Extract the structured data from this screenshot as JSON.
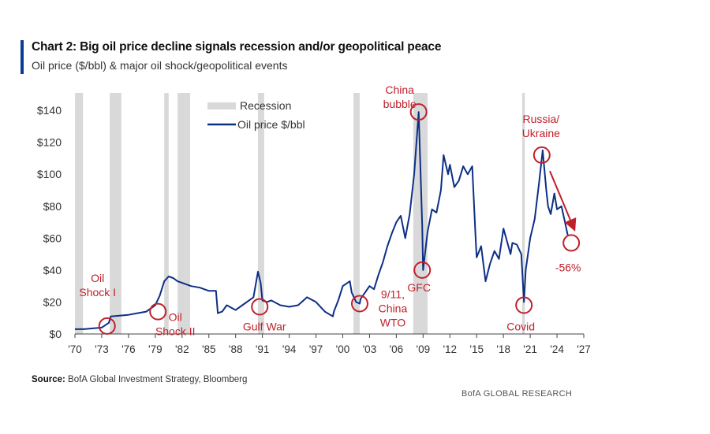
{
  "header": {
    "title": "Chart 2: Big oil price decline signals recession and/or geopolitical peace",
    "subtitle": "Oil price ($/bbl) & major oil shock/geopolitical events"
  },
  "footer": {
    "source_label": "Source:",
    "source_text": " BofA Global Investment Strategy, Bloomberg",
    "brand": "BofA GLOBAL RESEARCH"
  },
  "colors": {
    "line": "#0d2f86",
    "recession": "#d9d9d9",
    "annotation": "#c0202b"
  },
  "chart_data": {
    "type": "line",
    "x_unit": "year",
    "xlim": [
      1970,
      2027
    ],
    "ylim": [
      0,
      145
    ],
    "x_ticks": [
      1970,
      1973,
      1976,
      1979,
      1982,
      1985,
      1988,
      1991,
      1994,
      1997,
      2000,
      2003,
      2006,
      2009,
      2012,
      2015,
      2018,
      2021,
      2024,
      2027
    ],
    "x_tick_labels": [
      "'70",
      "'73",
      "'76",
      "'79",
      "'82",
      "'85",
      "'88",
      "'91",
      "'94",
      "'97",
      "'00",
      "'03",
      "'06",
      "'09",
      "'12",
      "'15",
      "'18",
      "'21",
      "'24",
      "'27"
    ],
    "y_ticks": [
      0,
      20,
      40,
      60,
      80,
      100,
      120,
      140
    ],
    "y_tick_labels": [
      "$0",
      "$20",
      "$40",
      "$60",
      "$80",
      "$100",
      "$120",
      "$140"
    ],
    "legend": {
      "placement": "top-left",
      "recession_label": "Recession",
      "series_label": "Oil price $/bbl"
    },
    "recessions": [
      [
        1970.0,
        1970.9
      ],
      [
        1973.9,
        1975.2
      ],
      [
        1980.0,
        1980.5
      ],
      [
        1981.5,
        1982.9
      ],
      [
        1990.5,
        1991.2
      ],
      [
        2001.2,
        2001.9
      ],
      [
        2007.9,
        2009.5
      ],
      [
        2020.1,
        2020.4
      ]
    ],
    "series": [
      {
        "name": "Oil price $/bbl",
        "x": [
          1970,
          1971,
          1972,
          1973,
          1973.8,
          1974,
          1975,
          1976,
          1977,
          1978,
          1979,
          1979.5,
          1980,
          1980.5,
          1981,
          1981.5,
          1982,
          1983,
          1984,
          1985,
          1985.8,
          1986,
          1986.5,
          1987,
          1988,
          1989,
          1990,
          1990.5,
          1990.8,
          1991,
          1991.5,
          1992,
          1993,
          1994,
          1995,
          1996,
          1997,
          1998,
          1998.9,
          1999,
          1999.5,
          2000,
          2000.8,
          2001,
          2001.5,
          2001.9,
          2002,
          2002.5,
          2003,
          2003.5,
          2004,
          2004.5,
          2005,
          2005.5,
          2006,
          2006.5,
          2007,
          2007.5,
          2008,
          2008.5,
          2008.9,
          2009,
          2009.5,
          2010,
          2010.5,
          2011,
          2011.3,
          2011.8,
          2012,
          2012.5,
          2013,
          2013.5,
          2014,
          2014.5,
          2014.9,
          2015,
          2015.5,
          2016,
          2016.5,
          2017,
          2017.5,
          2018,
          2018.8,
          2019,
          2019.5,
          2020,
          2020.3,
          2020.5,
          2021,
          2021.5,
          2022,
          2022.4,
          2022.8,
          2023,
          2023.3,
          2023.7,
          2024,
          2024.5,
          2024.9,
          2025.2
        ],
        "values": [
          3,
          3,
          3.5,
          4,
          7,
          11,
          11.5,
          12,
          13,
          14,
          18,
          24,
          33,
          36,
          35,
          33,
          32,
          30,
          29,
          27,
          27,
          13,
          14,
          18,
          15,
          19,
          23,
          39,
          32,
          21,
          20,
          21,
          18,
          17,
          18,
          23,
          20,
          14,
          11,
          14,
          21,
          30,
          33,
          26,
          20,
          19,
          22,
          26,
          30,
          28,
          37,
          45,
          55,
          63,
          70,
          74,
          60,
          75,
          100,
          139,
          68,
          40,
          64,
          78,
          76,
          90,
          112,
          100,
          106,
          92,
          96,
          105,
          100,
          105,
          58,
          48,
          55,
          33,
          44,
          52,
          47,
          66,
          50,
          57,
          56,
          50,
          20,
          40,
          60,
          72,
          95,
          115,
          90,
          80,
          75,
          88,
          78,
          80,
          70,
          62
        ]
      }
    ],
    "annotations": [
      {
        "text": "Oil\nShock I",
        "x": 1973.6,
        "y": 5
      },
      {
        "text": "Oil\nShock II",
        "x": 1979.3,
        "y": 14
      },
      {
        "text": "Gulf War",
        "x": 1990.7,
        "y": 17
      },
      {
        "text": "9/11,\nChina\nWTO",
        "x": 2001.9,
        "y": 19
      },
      {
        "text": "China\nbubble",
        "x": 2008.5,
        "y": 139
      },
      {
        "text": "GFC",
        "x": 2008.9,
        "y": 40
      },
      {
        "text": "Covid",
        "x": 2020.3,
        "y": 18
      },
      {
        "text": "Russia/\nUkraine",
        "x": 2022.3,
        "y": 112
      },
      {
        "text": "-56%",
        "x": 2025.6,
        "y": 57
      }
    ]
  }
}
